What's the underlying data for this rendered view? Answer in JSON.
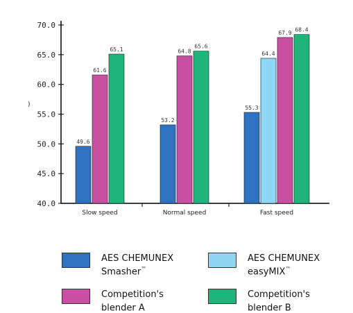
{
  "chart_data": {
    "type": "bar",
    "title": "",
    "xlabel": "",
    "ylabel": ")",
    "ylim": [
      40.0,
      70.0
    ],
    "yticks": [
      "40.0",
      "45.0",
      "50.0",
      "55.0",
      "60.0",
      "65.0",
      "70.0"
    ],
    "categories": [
      "Slow speed",
      "Normal speed",
      "Fast speed"
    ],
    "grid": false,
    "legend_position": "bottom",
    "series": [
      {
        "name": "AES CHEMUNEX Smasher™",
        "color": "#2f72c0",
        "values": [
          49.6,
          53.2,
          55.3
        ]
      },
      {
        "name": "AES CHEMUNEX easyMIX™",
        "color": "#8fd8f5",
        "values": [
          null,
          null,
          64.4
        ]
      },
      {
        "name": "Competition's blender A",
        "color": "#c94fa3",
        "values": [
          61.6,
          64.8,
          67.9
        ]
      },
      {
        "name": "Competition's blender B",
        "color": "#1fb47a",
        "values": [
          65.1,
          65.6,
          68.4
        ]
      }
    ],
    "value_labels": [
      [
        "49.6",
        "53.2",
        "55.3"
      ],
      [
        null,
        null,
        "64.4"
      ],
      [
        "61.6",
        "64.8",
        "67.9"
      ],
      [
        "65.1",
        "65.6",
        "68.4"
      ]
    ]
  },
  "legend": {
    "items": [
      {
        "line1": "AES CHEMUNEX",
        "line2": "Smasher",
        "mark": "™",
        "color": "#2f72c0"
      },
      {
        "line1": "AES CHEMUNEX",
        "line2": "easyMIX",
        "mark": "™",
        "color": "#8fd8f5"
      },
      {
        "line1": "Competition's",
        "line2": "blender A",
        "mark": "",
        "color": "#c94fa3"
      },
      {
        "line1": "Competition's",
        "line2": "blender B",
        "mark": "",
        "color": "#1fb47a"
      }
    ]
  }
}
